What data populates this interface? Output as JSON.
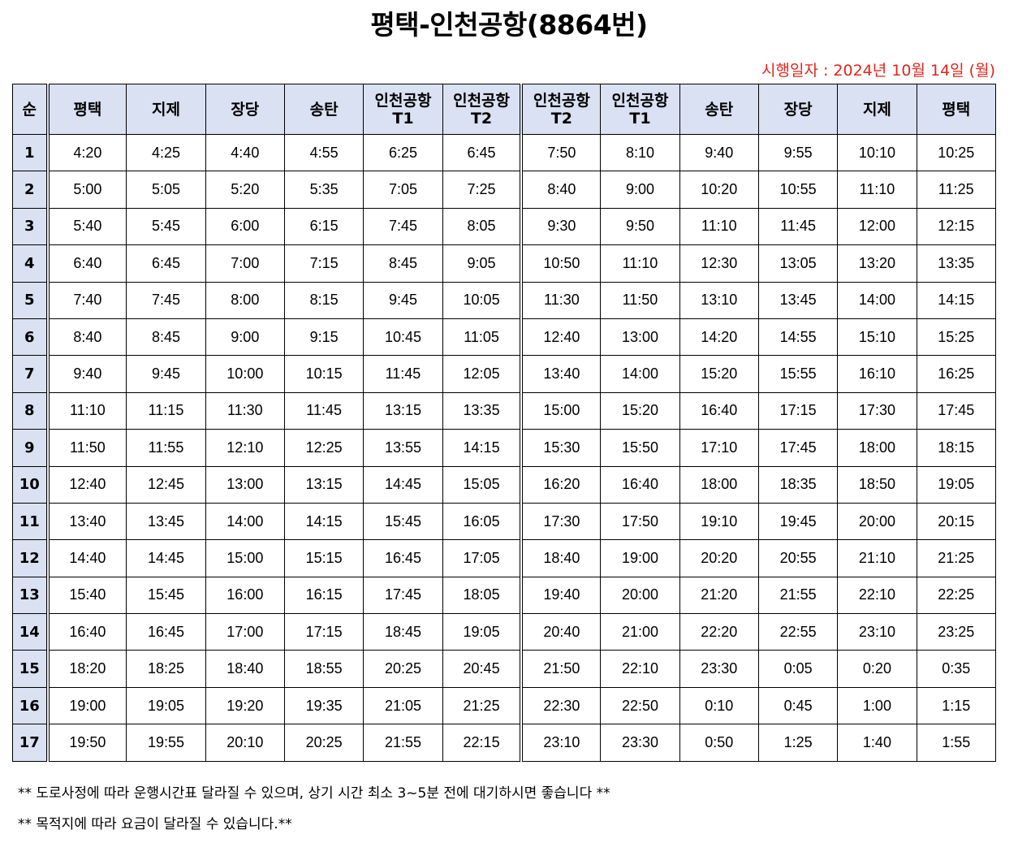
{
  "title": "평택-인천공항(8864번)",
  "effective_date": "시행일자 :  2024년 10월 14일 (월)",
  "colors": {
    "header_bg": "#d9e1f2",
    "effective_text": "#e0251b"
  },
  "table": {
    "headers": [
      [
        "순"
      ],
      [
        "평택"
      ],
      [
        "지제"
      ],
      [
        "장당"
      ],
      [
        "송탄"
      ],
      [
        "인천공항",
        "T1"
      ],
      [
        "인천공항",
        "T2"
      ],
      [
        "인천공항",
        "T2"
      ],
      [
        "인천공항",
        "T1"
      ],
      [
        "송탄"
      ],
      [
        "장당"
      ],
      [
        "지제"
      ],
      [
        "평택"
      ]
    ],
    "rows": [
      [
        "1",
        "4:20",
        "4:25",
        "4:40",
        "4:55",
        "6:25",
        "6:45",
        "7:50",
        "8:10",
        "9:40",
        "9:55",
        "10:10",
        "10:25"
      ],
      [
        "2",
        "5:00",
        "5:05",
        "5:20",
        "5:35",
        "7:05",
        "7:25",
        "8:40",
        "9:00",
        "10:20",
        "10:55",
        "11:10",
        "11:25"
      ],
      [
        "3",
        "5:40",
        "5:45",
        "6:00",
        "6:15",
        "7:45",
        "8:05",
        "9:30",
        "9:50",
        "11:10",
        "11:45",
        "12:00",
        "12:15"
      ],
      [
        "4",
        "6:40",
        "6:45",
        "7:00",
        "7:15",
        "8:45",
        "9:05",
        "10:50",
        "11:10",
        "12:30",
        "13:05",
        "13:20",
        "13:35"
      ],
      [
        "5",
        "7:40",
        "7:45",
        "8:00",
        "8:15",
        "9:45",
        "10:05",
        "11:30",
        "11:50",
        "13:10",
        "13:45",
        "14:00",
        "14:15"
      ],
      [
        "6",
        "8:40",
        "8:45",
        "9:00",
        "9:15",
        "10:45",
        "11:05",
        "12:40",
        "13:00",
        "14:20",
        "14:55",
        "15:10",
        "15:25"
      ],
      [
        "7",
        "9:40",
        "9:45",
        "10:00",
        "10:15",
        "11:45",
        "12:05",
        "13:40",
        "14:00",
        "15:20",
        "15:55",
        "16:10",
        "16:25"
      ],
      [
        "8",
        "11:10",
        "11:15",
        "11:30",
        "11:45",
        "13:15",
        "13:35",
        "15:00",
        "15:20",
        "16:40",
        "17:15",
        "17:30",
        "17:45"
      ],
      [
        "9",
        "11:50",
        "11:55",
        "12:10",
        "12:25",
        "13:55",
        "14:15",
        "15:30",
        "15:50",
        "17:10",
        "17:45",
        "18:00",
        "18:15"
      ],
      [
        "10",
        "12:40",
        "12:45",
        "13:00",
        "13:15",
        "14:45",
        "15:05",
        "16:20",
        "16:40",
        "18:00",
        "18:35",
        "18:50",
        "19:05"
      ],
      [
        "11",
        "13:40",
        "13:45",
        "14:00",
        "14:15",
        "15:45",
        "16:05",
        "17:30",
        "17:50",
        "19:10",
        "19:45",
        "20:00",
        "20:15"
      ],
      [
        "12",
        "14:40",
        "14:45",
        "15:00",
        "15:15",
        "16:45",
        "17:05",
        "18:40",
        "19:00",
        "20:20",
        "20:55",
        "21:10",
        "21:25"
      ],
      [
        "13",
        "15:40",
        "15:45",
        "16:00",
        "16:15",
        "17:45",
        "18:05",
        "19:40",
        "20:00",
        "21:20",
        "21:55",
        "22:10",
        "22:25"
      ],
      [
        "14",
        "16:40",
        "16:45",
        "17:00",
        "17:15",
        "18:45",
        "19:05",
        "20:40",
        "21:00",
        "22:20",
        "22:55",
        "23:10",
        "23:25"
      ],
      [
        "15",
        "18:20",
        "18:25",
        "18:40",
        "18:55",
        "20:25",
        "20:45",
        "21:50",
        "22:10",
        "23:30",
        "0:05",
        "0:20",
        "0:35"
      ],
      [
        "16",
        "19:00",
        "19:05",
        "19:20",
        "19:35",
        "21:05",
        "21:25",
        "22:30",
        "22:50",
        "0:10",
        "0:45",
        "1:00",
        "1:15"
      ],
      [
        "17",
        "19:50",
        "19:55",
        "20:10",
        "20:25",
        "21:55",
        "22:15",
        "23:10",
        "23:30",
        "0:50",
        "1:25",
        "1:40",
        "1:55"
      ]
    ]
  },
  "notes": [
    "** 도로사정에 따라 운행시간표 달라질 수 있으며, 상기 시간 최소 3~5분 전에 대기하시면 좋습니다 **",
    "** 목적지에 따라 요금이 달라질 수 있습니다.**"
  ]
}
